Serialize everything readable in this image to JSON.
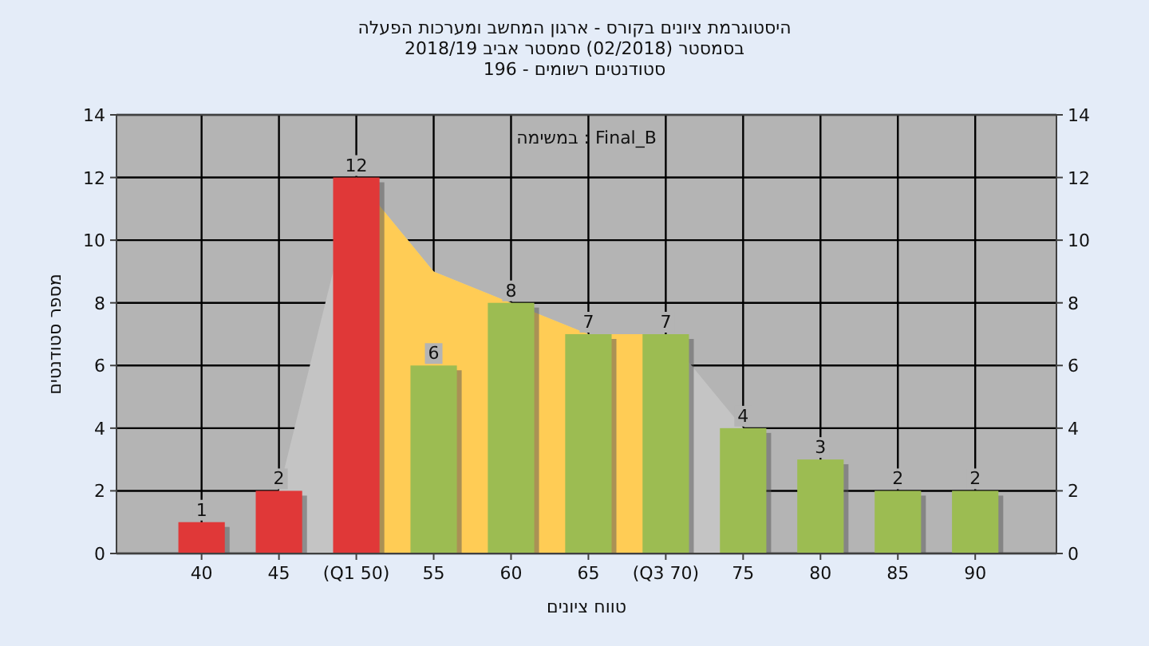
{
  "chart_data": {
    "type": "bar",
    "title": "היסטוגרמת ציונים בקורס - ארגון המחשב ומערכות הפעלה",
    "subtitle": "בסמסטר  (02/2018)  סמסטר אביב 2018/19\nסטודנטים רשומים - 196",
    "xlabel": "טווח ציונים",
    "ylabel": "מספר סטודנטים",
    "annotations": [
      "Final_B : במשימה"
    ],
    "categories": [
      "40",
      "45",
      "(Q1 50)",
      "55",
      "60",
      "65",
      "(Q3 70)",
      "75",
      "80",
      "85",
      "90"
    ],
    "series": [
      {
        "type": "area",
        "color": "#c4c4c4",
        "values": [
          null,
          2,
          12,
          9,
          8,
          7,
          7,
          4,
          null,
          null,
          null
        ]
      },
      {
        "type": "area",
        "color": "#ffcc55",
        "values": [
          null,
          null,
          12,
          9,
          8,
          7,
          7,
          null,
          null,
          null,
          null
        ]
      },
      {
        "values": [
          1,
          2,
          12,
          6,
          8,
          7,
          7,
          4,
          3,
          2,
          2
        ],
        "value_labels": [
          "1",
          "2",
          "12",
          "6",
          "8",
          "7",
          "7",
          "4",
          "3",
          "2",
          "2"
        ],
        "colors": [
          "#e03838",
          "#e03838",
          "#e03838",
          "#9cbc52",
          "#9cbc52",
          "#9cbc52",
          "#9cbc52",
          "#9cbc52",
          "#9cbc52",
          "#9cbc52",
          "#9cbc52"
        ]
      }
    ],
    "ylim": [
      0,
      14
    ],
    "yticks": [
      0,
      2,
      4,
      6,
      8,
      10,
      12,
      14
    ],
    "y2lim": [
      0,
      14
    ],
    "y2ticks": [
      0,
      2,
      4,
      6,
      8,
      10,
      12,
      14
    ],
    "grid": true
  }
}
